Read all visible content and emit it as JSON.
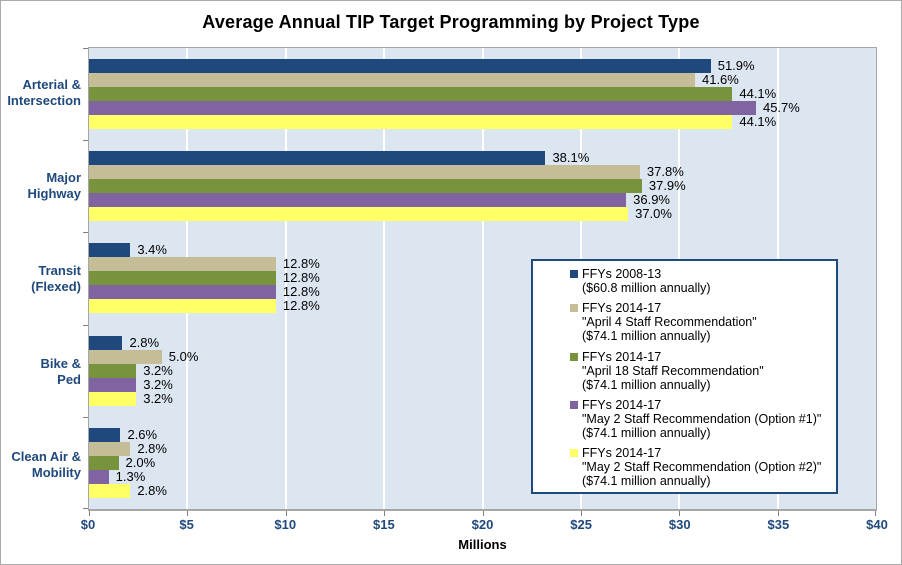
{
  "title": "Average Annual TIP Target Programming by Project Type",
  "x_axis": {
    "title": "Millions",
    "tick_labels": [
      "$0",
      "$5",
      "$10",
      "$15",
      "$20",
      "$25",
      "$30",
      "$35",
      "$40"
    ],
    "min": 0,
    "max": 40,
    "step": 5
  },
  "colors": {
    "plot_background": "#DCE6F1",
    "gridline": "#FFFFFF",
    "axis_line": "#A6A6A6",
    "tick_mark": "#808080",
    "axis_text": "#1F497D",
    "category_text": "#1F497D",
    "data_label_text": "#000000",
    "legend_border": "#1F497D",
    "legend_background": "#FFFFFF"
  },
  "chart_data": {
    "type": "bar",
    "orientation": "horizontal",
    "title": "Average Annual TIP Target Programming by Project Type",
    "xlabel": "Millions",
    "xlim": [
      0,
      40
    ],
    "x_tick_labels": [
      "$0",
      "$5",
      "$10",
      "$15",
      "$20",
      "$25",
      "$30",
      "$35",
      "$40"
    ],
    "grid": true,
    "legend_position": "right-center-overlay",
    "categories": [
      "Arterial &\nIntersection",
      "Major\nHighway",
      "Transit\n(Flexed)",
      "Bike &\nPed",
      "Clean Air &\nMobility"
    ],
    "series": [
      {
        "name": "FFYs 2008-13",
        "legend_lines": [
          "FFYs 2008-13",
          "($60.8 million annually)"
        ],
        "annual_total_millions": 60.8,
        "color": "#1F497D",
        "percent_labels": [
          "51.9%",
          "38.1%",
          "3.4%",
          "2.8%",
          "2.6%"
        ],
        "values_millions": [
          31.6,
          23.2,
          2.1,
          1.7,
          1.6
        ]
      },
      {
        "name": "FFYs 2014-17 \"April 4 Staff Recommendation\"",
        "legend_lines": [
          "FFYs 2014-17",
          "\"April 4 Staff Recommendation\"",
          "($74.1 million annually)"
        ],
        "annual_total_millions": 74.1,
        "color": "#C4BD97",
        "percent_labels": [
          "41.6%",
          "37.8%",
          "12.8%",
          "5.0%",
          "2.8%"
        ],
        "values_millions": [
          30.8,
          28.0,
          9.5,
          3.7,
          2.1
        ]
      },
      {
        "name": "FFYs 2014-17 \"April 18 Staff Recommendation\"",
        "legend_lines": [
          "FFYs 2014-17",
          "\"April 18 Staff Recommendation\"",
          "($74.1 million annually)"
        ],
        "annual_total_millions": 74.1,
        "color": "#77933C",
        "percent_labels": [
          "44.1%",
          "37.9%",
          "12.8%",
          "3.2%",
          "2.0%"
        ],
        "values_millions": [
          32.7,
          28.1,
          9.5,
          2.4,
          1.5
        ]
      },
      {
        "name": "FFYs 2014-17 \"May 2 Staff Recommendation (Option #1)\"",
        "legend_lines": [
          "FFYs 2014-17",
          "\"May 2 Staff Recommendation (Option #1)\"",
          "($74.1 million annually)"
        ],
        "annual_total_millions": 74.1,
        "color": "#8064A2",
        "percent_labels": [
          "45.7%",
          "36.9%",
          "12.8%",
          "3.2%",
          "1.3%"
        ],
        "values_millions": [
          33.9,
          27.3,
          9.5,
          2.4,
          1.0
        ]
      },
      {
        "name": "FFYs 2014-17 \"May 2 Staff Recommendation (Option #2)\"",
        "legend_lines": [
          "FFYs 2014-17",
          "\"May 2 Staff Recommendation (Option #2)\"",
          "($74.1 million annually)"
        ],
        "annual_total_millions": 74.1,
        "color": "#FFFF66",
        "percent_labels": [
          "44.1%",
          "37.0%",
          "12.8%",
          "3.2%",
          "2.8%"
        ],
        "values_millions": [
          32.7,
          27.4,
          9.5,
          2.4,
          2.1
        ]
      }
    ]
  }
}
